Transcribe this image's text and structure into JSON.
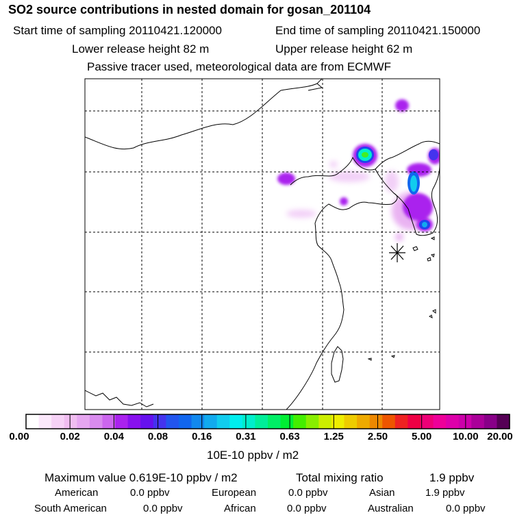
{
  "header": {
    "title": "SO2 source contributions in nested domain for gosan_201104",
    "start_label": "Start time of sampling 20110421.120000",
    "end_label": "End time of sampling 20110421.150000",
    "lower_label": "Lower release height   82 m",
    "upper_label": "Upper release height   62 m",
    "info": "Passive tracer used, meteorological data are from ECMWF"
  },
  "chart_data": {
    "type": "heatmap",
    "title": "SO2 source contributions in nested domain for gosan_201104",
    "colorbar": {
      "ticks": [
        "0.00",
        "0.02",
        "0.04",
        "0.08",
        "0.16",
        "0.31",
        "0.63",
        "1.25",
        "2.50",
        "5.00",
        "10.00",
        "20.00"
      ],
      "unit": "10E-10 ppbv / m2",
      "colors": [
        "#ffffff",
        "#fbe8fb",
        "#f6d2f6",
        "#f0bdf0",
        "#e6a6f0",
        "#d98bee",
        "#cc66ee",
        "#aa22ee",
        "#8811ee",
        "#6611ee",
        "#4433ee",
        "#2255ee",
        "#1166ee",
        "#1188ee",
        "#11aaee",
        "#11ccee",
        "#00eeee",
        "#00eecc",
        "#00ee99",
        "#00ee66",
        "#00ee33",
        "#44ee00",
        "#88ee00",
        "#ccee00",
        "#eeee00",
        "#eecc00",
        "#eeaa00",
        "#ee8800",
        "#ee5500",
        "#ee2222",
        "#ee0044",
        "#ee0077",
        "#ee0099",
        "#dd00aa",
        "#cc00aa",
        "#aa0099",
        "#880088",
        "#550055"
      ]
    },
    "receptor_marker": "asterisk"
  },
  "stats": {
    "max_line": "Maximum value  0.619E-10 ppbv / m2",
    "total_label": "Total mixing ratio",
    "total_value": "1.9 ppbv"
  },
  "regions": [
    {
      "name": "American",
      "value": "0.0 ppbv"
    },
    {
      "name": "European",
      "value": "0.0 ppbv"
    },
    {
      "name": "Asian",
      "value": "1.9 ppbv"
    },
    {
      "name": "South American",
      "value": "0.0 ppbv"
    },
    {
      "name": "African",
      "value": "0.0 ppbv"
    },
    {
      "name": "Australian",
      "value": "0.0 ppbv"
    }
  ]
}
